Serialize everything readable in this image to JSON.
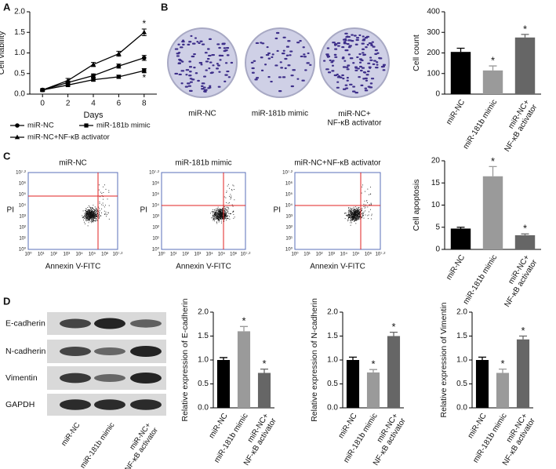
{
  "panel_labels": [
    "A",
    "B",
    "C",
    "D"
  ],
  "colony": {
    "labels": [
      "miR-NC",
      "miR-181b mimic",
      "miR-NC+\nNF-κB activator"
    ]
  },
  "flow": {
    "titles": [
      "miR-NC",
      "miR-181b mimic",
      "miR-NC+NF-κB activator"
    ],
    "y_label": "PI",
    "x_label": "Annexin V-FITC",
    "ticks": [
      "10⁰",
      "10¹",
      "10²",
      "10³",
      "10⁴",
      "10⁵",
      "10⁶",
      "10⁷·²"
    ]
  },
  "blot": {
    "rows": [
      "E-cadherin",
      "N-cadherin",
      "Vimentin",
      "GAPDH"
    ],
    "lanes": [
      "miR-NC",
      "miR-181b mimic",
      "miR-NC+\nNF-κB activator"
    ]
  },
  "chart_data": [
    {
      "type": "line",
      "x_label": "Days",
      "y_label": "Cell viability",
      "x": [
        0,
        2,
        4,
        6,
        8
      ],
      "xlim": [
        -1,
        9
      ],
      "xticks": [
        0,
        2,
        4,
        6,
        8
      ],
      "ylim": [
        0,
        2
      ],
      "yticks": [
        {
          "value": 0,
          "label": "0.0"
        },
        0.5,
        {
          "value": 1,
          "label": "1.0"
        },
        1.5,
        {
          "value": 2,
          "label": "2.0"
        }
      ],
      "series": [
        {
          "name": "miR-NC",
          "color": "#000000",
          "marker": "circle",
          "values": [
            0.1,
            0.28,
            0.45,
            0.68,
            0.88
          ],
          "errors": [
            0.02,
            0.04,
            0.04,
            0.05,
            0.06
          ]
        },
        {
          "name": "miR-181b mimic",
          "color": "#000000",
          "marker": "square",
          "values": [
            0.1,
            0.22,
            0.35,
            0.42,
            0.57
          ],
          "errors": [
            0.02,
            0.03,
            0.03,
            0.04,
            0.05
          ],
          "annotations": [
            null,
            null,
            null,
            null,
            "*"
          ]
        },
        {
          "name": "miR-NC+NF-κB activator",
          "color": "#000000",
          "marker": "triangle",
          "values": [
            0.1,
            0.33,
            0.72,
            0.98,
            1.5
          ],
          "errors": [
            0.02,
            0.05,
            0.05,
            0.06,
            0.08
          ],
          "annotations": [
            null,
            null,
            null,
            null,
            "*"
          ]
        }
      ]
    },
    {
      "type": "bar",
      "y_label": "Cell count",
      "categories": [
        "miR-NC",
        "miR-181b mimic",
        "miR-NC+\nNF-κB activator"
      ],
      "values": [
        205,
        115,
        275
      ],
      "errors": [
        18,
        22,
        15
      ],
      "colors": [
        "#000000",
        "#9a9a9a",
        "#666666"
      ],
      "annotations": [
        null,
        "*",
        "*"
      ],
      "ylim": [
        0,
        400
      ],
      "yticks": [
        0,
        100,
        200,
        300,
        400
      ]
    },
    {
      "type": "bar",
      "y_label": "Cell apoptosis",
      "categories": [
        "miR-NC",
        "miR-181b mimic",
        "miR-NC+\nNF-κB activator"
      ],
      "values": [
        4.7,
        16.5,
        3.2
      ],
      "errors": [
        0.3,
        2.2,
        0.3
      ],
      "colors": [
        "#000000",
        "#9a9a9a",
        "#666666"
      ],
      "annotations": [
        null,
        "*",
        "*"
      ],
      "ylim": [
        0,
        20
      ],
      "yticks": [
        0,
        5,
        10,
        15,
        20
      ]
    },
    {
      "type": "bar",
      "y_label": "Relative expression of E-cadherin",
      "categories": [
        "miR-NC",
        "miR-181b mimic",
        "miR-NC+\nNF-κB activator"
      ],
      "values": [
        1.0,
        1.6,
        0.73
      ],
      "errors": [
        0.05,
        0.1,
        0.08
      ],
      "colors": [
        "#000000",
        "#9a9a9a",
        "#666666"
      ],
      "annotations": [
        null,
        "*",
        "*"
      ],
      "ylim": [
        0,
        2
      ],
      "yticks": [
        {
          "value": 0,
          "label": "0.0"
        },
        0.5,
        {
          "value": 1,
          "label": "1.0"
        },
        1.5,
        {
          "value": 2,
          "label": "2.0"
        }
      ]
    },
    {
      "type": "bar",
      "y_label": "Relative expression of N-cadherin",
      "categories": [
        "miR-NC",
        "miR-181b mimic",
        "miR-NC+\nNF-κB activator"
      ],
      "values": [
        1.0,
        0.74,
        1.5
      ],
      "errors": [
        0.06,
        0.06,
        0.08
      ],
      "colors": [
        "#000000",
        "#9a9a9a",
        "#666666"
      ],
      "annotations": [
        null,
        "*",
        "*"
      ],
      "ylim": [
        0,
        2
      ],
      "yticks": [
        {
          "value": 0,
          "label": "0.0"
        },
        0.5,
        {
          "value": 1,
          "label": "1.0"
        },
        1.5,
        {
          "value": 2,
          "label": "2.0"
        }
      ]
    },
    {
      "type": "bar",
      "y_label": "Relative expression of Vimentin",
      "categories": [
        "miR-NC",
        "miR-181b mimic",
        "miR-NC+\nNF-κB activator"
      ],
      "values": [
        1.0,
        0.73,
        1.43
      ],
      "errors": [
        0.06,
        0.08,
        0.07
      ],
      "colors": [
        "#000000",
        "#9a9a9a",
        "#666666"
      ],
      "annotations": [
        null,
        "*",
        "*"
      ],
      "ylim": [
        0,
        2
      ],
      "yticks": [
        {
          "value": 0,
          "label": "0.0"
        },
        0.5,
        {
          "value": 1,
          "label": "1.0"
        },
        1.5,
        {
          "value": 2,
          "label": "2.0"
        }
      ]
    }
  ]
}
